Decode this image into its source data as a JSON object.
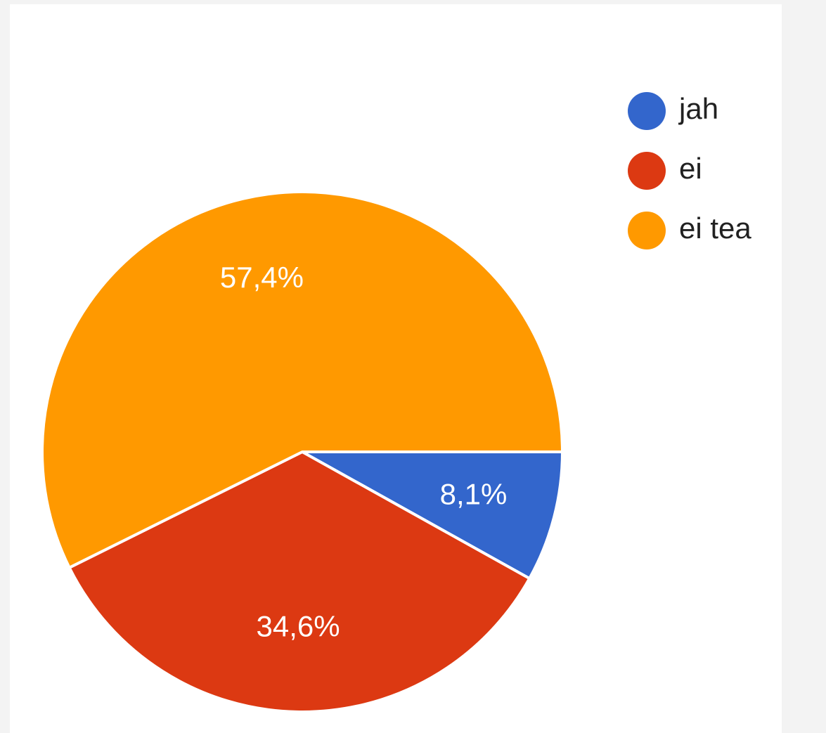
{
  "chart_data": {
    "type": "pie",
    "title": "",
    "slices": [
      {
        "label": "jah",
        "value": 8.1,
        "display": "8,1%",
        "color": "#3366cc"
      },
      {
        "label": "ei",
        "value": 34.6,
        "display": "34,6%",
        "color": "#dc3912"
      },
      {
        "label": "ei tea",
        "value": 57.4,
        "display": "57,4%",
        "color": "#ff9900"
      }
    ],
    "legend_position": "top-right"
  }
}
